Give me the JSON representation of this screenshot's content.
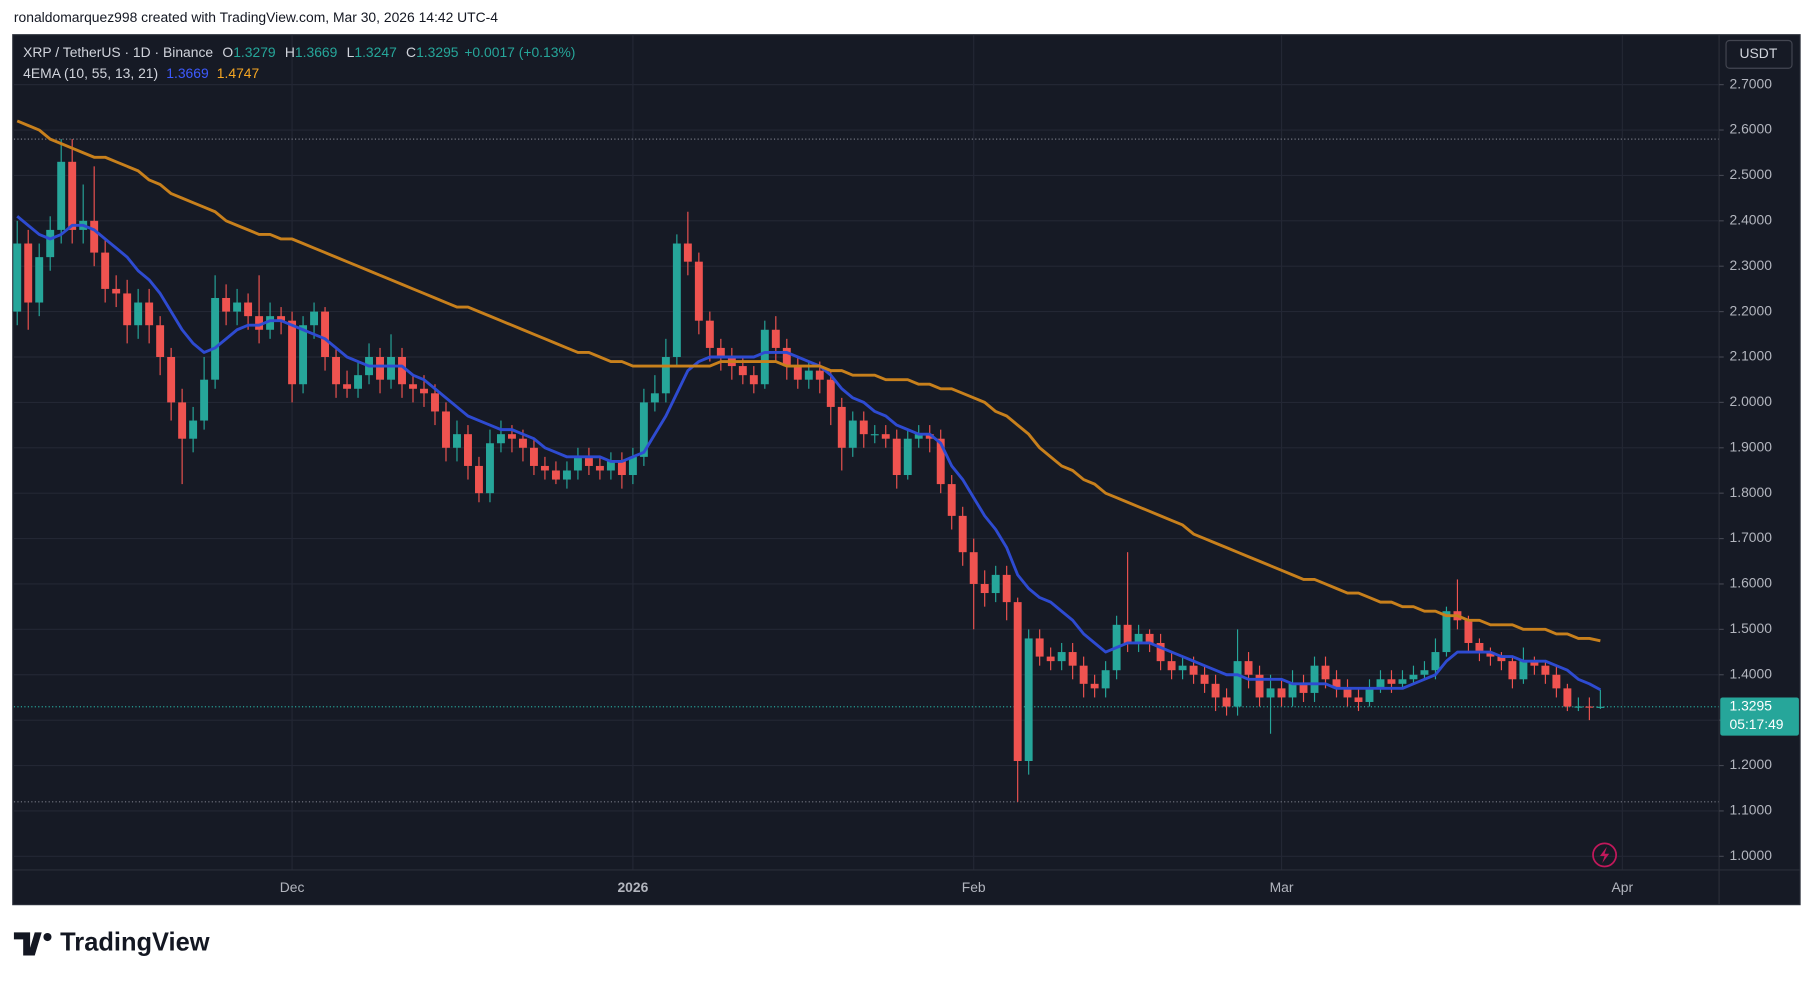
{
  "attribution": "ronaldomarquez998 created with TradingView.com, Mar 30, 2026 14:42 UTC-4",
  "watermark": "TradingView",
  "chart_data": {
    "type": "candlestick",
    "title": "XRP / TetherUS · 1D · Binance",
    "legend_labels": {
      "open": "O",
      "high": "H",
      "low": "L",
      "close": "C"
    },
    "change": "+0.0017 (+0.13%)",
    "indicator": "4EMA (10, 55, 13, 21)",
    "currency": "USDT",
    "countdown": "05:17:49",
    "up_color": "#26a69a",
    "down_color": "#ef5350",
    "grid": true,
    "xlim": [
      -0.3,
      154.8
    ],
    "xticks": [
      {
        "value": 25,
        "label": "Dec"
      },
      {
        "value": 56,
        "label": "2026"
      },
      {
        "value": 87,
        "label": "Feb"
      },
      {
        "value": 115,
        "label": "Mar"
      },
      {
        "value": 146,
        "label": "Apr"
      }
    ],
    "ylim": [
      0.97,
      2.81
    ],
    "yticks": [
      {
        "value": 1,
        "label": "1.0000"
      },
      {
        "value": 1.1,
        "label": "1.1000"
      },
      {
        "value": 1.2,
        "label": "1.2000"
      },
      {
        "value": 1.3,
        "label": "1.3000"
      },
      {
        "value": 1.4,
        "label": "1.4000"
      },
      {
        "value": 1.5,
        "label": "1.5000"
      },
      {
        "value": 1.6,
        "label": "1.6000"
      },
      {
        "value": 1.7,
        "label": "1.7000"
      },
      {
        "value": 1.8,
        "label": "1.8000"
      },
      {
        "value": 1.9,
        "label": "1.9000"
      },
      {
        "value": 2,
        "label": "2.0000"
      },
      {
        "value": 2.1,
        "label": "2.1000"
      },
      {
        "value": 2.2,
        "label": "2.2000"
      },
      {
        "value": 2.3,
        "label": "2.3000"
      },
      {
        "value": 2.4,
        "label": "2.4000"
      },
      {
        "value": 2.5,
        "label": "2.5000"
      },
      {
        "value": 2.6,
        "label": "2.6000"
      },
      {
        "value": 2.7,
        "label": "2.7000"
      }
    ],
    "range_high": 2.58,
    "range_low": 1.12,
    "open": [
      2.2,
      2.35,
      2.22,
      2.32,
      2.38,
      2.53,
      2.38,
      2.4,
      2.33,
      2.25,
      2.24,
      2.17,
      2.22,
      2.17,
      2.1,
      2.0,
      1.92,
      1.96,
      2.05,
      2.23,
      2.2,
      2.22,
      2.19,
      2.16,
      2.19,
      2.18,
      2.04,
      2.17,
      2.2,
      2.1,
      2.04,
      2.03,
      2.06,
      2.1,
      2.05,
      2.1,
      2.04,
      2.03,
      2.02,
      1.98,
      1.9,
      1.93,
      1.86,
      1.8,
      1.91,
      1.93,
      1.92,
      1.9,
      1.86,
      1.85,
      1.83,
      1.85,
      1.88,
      1.86,
      1.85,
      1.87,
      1.84,
      1.88,
      2.0,
      2.02,
      2.1,
      2.35,
      2.31,
      2.18,
      2.12,
      2.1,
      2.08,
      2.06,
      2.04,
      2.16,
      2.12,
      2.08,
      2.05,
      2.07,
      2.05,
      1.99,
      1.9,
      1.96,
      1.93,
      1.93,
      1.92,
      1.84,
      1.92,
      1.93,
      1.92,
      1.82,
      1.75,
      1.67,
      1.6,
      1.58,
      1.62,
      1.56,
      1.21,
      1.48,
      1.44,
      1.43,
      1.45,
      1.42,
      1.38,
      1.37,
      1.41,
      1.51,
      1.47,
      1.49,
      1.47,
      1.43,
      1.41,
      1.42,
      1.4,
      1.38,
      1.35,
      1.33,
      1.43,
      1.4,
      1.35,
      1.37,
      1.35,
      1.38,
      1.36,
      1.42,
      1.39,
      1.37,
      1.35,
      1.34,
      1.37,
      1.39,
      1.38,
      1.39,
      1.4,
      1.41,
      1.45,
      1.54,
      1.52,
      1.47,
      1.45,
      1.44,
      1.43,
      1.39,
      1.43,
      1.42,
      1.4,
      1.37,
      1.33,
      1.33,
      1.3279
    ],
    "high": [
      2.4,
      2.38,
      2.35,
      2.41,
      2.58,
      2.58,
      2.48,
      2.52,
      2.36,
      2.28,
      2.27,
      2.25,
      2.25,
      2.19,
      2.12,
      2.03,
      1.99,
      2.1,
      2.28,
      2.26,
      2.25,
      2.24,
      2.28,
      2.22,
      2.21,
      2.2,
      2.19,
      2.22,
      2.21,
      2.12,
      2.07,
      2.09,
      2.13,
      2.12,
      2.15,
      2.12,
      2.06,
      2.06,
      2.04,
      2.0,
      1.96,
      1.95,
      1.88,
      1.94,
      1.96,
      1.95,
      1.94,
      1.92,
      1.88,
      1.87,
      1.87,
      1.9,
      1.9,
      1.88,
      1.89,
      1.89,
      1.9,
      2.03,
      2.06,
      2.14,
      2.37,
      2.42,
      2.33,
      2.2,
      2.14,
      2.12,
      2.1,
      2.08,
      2.18,
      2.19,
      2.14,
      2.1,
      2.09,
      2.09,
      2.07,
      2.01,
      1.98,
      1.98,
      1.95,
      1.95,
      1.94,
      1.94,
      1.95,
      1.95,
      1.94,
      1.84,
      1.77,
      1.7,
      1.63,
      1.64,
      1.64,
      1.57,
      1.5,
      1.5,
      1.46,
      1.47,
      1.47,
      1.44,
      1.4,
      1.43,
      1.53,
      1.67,
      1.51,
      1.5,
      1.49,
      1.45,
      1.44,
      1.44,
      1.42,
      1.4,
      1.37,
      1.5,
      1.45,
      1.42,
      1.4,
      1.39,
      1.41,
      1.4,
      1.44,
      1.44,
      1.41,
      1.39,
      1.37,
      1.39,
      1.41,
      1.41,
      1.41,
      1.42,
      1.43,
      1.48,
      1.55,
      1.61,
      1.53,
      1.48,
      1.46,
      1.45,
      1.44,
      1.46,
      1.44,
      1.43,
      1.42,
      1.38,
      1.35,
      1.35,
      1.3669
    ],
    "low": [
      2.17,
      2.16,
      2.19,
      2.29,
      2.35,
      2.35,
      2.35,
      2.3,
      2.22,
      2.21,
      2.13,
      2.14,
      2.13,
      2.06,
      1.96,
      1.82,
      1.89,
      1.94,
      2.03,
      2.17,
      2.17,
      2.16,
      2.13,
      2.14,
      2.15,
      2.0,
      2.02,
      2.14,
      2.07,
      2.01,
      2.01,
      2.01,
      2.04,
      2.02,
      2.03,
      2.01,
      2.0,
      1.99,
      1.95,
      1.87,
      1.87,
      1.83,
      1.78,
      1.78,
      1.89,
      1.89,
      1.87,
      1.84,
      1.83,
      1.82,
      1.81,
      1.83,
      1.84,
      1.83,
      1.83,
      1.81,
      1.82,
      1.86,
      1.98,
      2.0,
      2.08,
      2.28,
      2.15,
      2.09,
      2.07,
      2.05,
      2.04,
      2.02,
      2.03,
      2.09,
      2.05,
      2.03,
      2.03,
      2.02,
      1.95,
      1.85,
      1.88,
      1.9,
      1.91,
      1.9,
      1.81,
      1.83,
      1.9,
      1.89,
      1.8,
      1.72,
      1.64,
      1.5,
      1.55,
      1.56,
      1.52,
      1.12,
      1.18,
      1.42,
      1.41,
      1.41,
      1.39,
      1.35,
      1.35,
      1.35,
      1.39,
      1.45,
      1.45,
      1.45,
      1.41,
      1.39,
      1.39,
      1.38,
      1.36,
      1.32,
      1.31,
      1.31,
      1.37,
      1.33,
      1.27,
      1.33,
      1.33,
      1.34,
      1.34,
      1.37,
      1.35,
      1.33,
      1.32,
      1.33,
      1.36,
      1.36,
      1.37,
      1.38,
      1.39,
      1.39,
      1.44,
      1.5,
      1.45,
      1.43,
      1.42,
      1.41,
      1.37,
      1.38,
      1.4,
      1.38,
      1.35,
      1.32,
      1.32,
      1.3,
      1.3247
    ],
    "close": [
      2.35,
      2.22,
      2.32,
      2.38,
      2.53,
      2.38,
      2.4,
      2.33,
      2.25,
      2.24,
      2.17,
      2.22,
      2.17,
      2.1,
      2.0,
      1.92,
      1.96,
      2.05,
      2.23,
      2.2,
      2.22,
      2.19,
      2.16,
      2.19,
      2.18,
      2.04,
      2.17,
      2.2,
      2.1,
      2.04,
      2.03,
      2.06,
      2.1,
      2.05,
      2.1,
      2.04,
      2.03,
      2.02,
      1.98,
      1.9,
      1.93,
      1.86,
      1.8,
      1.91,
      1.93,
      1.92,
      1.9,
      1.86,
      1.85,
      1.83,
      1.85,
      1.88,
      1.86,
      1.85,
      1.87,
      1.84,
      1.88,
      2.0,
      2.02,
      2.1,
      2.35,
      2.31,
      2.18,
      2.12,
      2.1,
      2.08,
      2.06,
      2.04,
      2.16,
      2.12,
      2.08,
      2.05,
      2.07,
      2.05,
      1.99,
      1.9,
      1.96,
      1.93,
      1.93,
      1.92,
      1.84,
      1.92,
      1.93,
      1.92,
      1.82,
      1.75,
      1.67,
      1.6,
      1.58,
      1.62,
      1.56,
      1.21,
      1.48,
      1.44,
      1.43,
      1.45,
      1.42,
      1.38,
      1.37,
      1.41,
      1.51,
      1.47,
      1.49,
      1.47,
      1.43,
      1.41,
      1.42,
      1.4,
      1.38,
      1.35,
      1.33,
      1.43,
      1.4,
      1.35,
      1.37,
      1.35,
      1.38,
      1.36,
      1.42,
      1.39,
      1.37,
      1.35,
      1.34,
      1.37,
      1.39,
      1.38,
      1.39,
      1.4,
      1.41,
      1.45,
      1.54,
      1.52,
      1.47,
      1.45,
      1.44,
      1.43,
      1.39,
      1.43,
      1.42,
      1.4,
      1.37,
      1.33,
      1.33,
      1.3278,
      1.3295
    ],
    "series": [
      {
        "color": "#2e4bd1",
        "values": [
          2.41,
          2.39,
          2.37,
          2.36,
          2.37,
          2.39,
          2.39,
          2.38,
          2.36,
          2.34,
          2.32,
          2.29,
          2.27,
          2.24,
          2.2,
          2.16,
          2.13,
          2.11,
          2.12,
          2.14,
          2.16,
          2.17,
          2.17,
          2.18,
          2.18,
          2.17,
          2.16,
          2.15,
          2.14,
          2.12,
          2.1,
          2.09,
          2.08,
          2.08,
          2.08,
          2.08,
          2.06,
          2.05,
          2.03,
          2.01,
          1.99,
          1.97,
          1.96,
          1.95,
          1.94,
          1.94,
          1.93,
          1.92,
          1.9,
          1.89,
          1.88,
          1.88,
          1.88,
          1.88,
          1.87,
          1.87,
          1.88,
          1.89,
          1.93,
          1.97,
          2.02,
          2.07,
          2.09,
          2.1,
          2.1,
          2.1,
          2.1,
          2.1,
          2.11,
          2.11,
          2.11,
          2.1,
          2.09,
          2.08,
          2.06,
          2.03,
          2.01,
          2.0,
          1.98,
          1.97,
          1.95,
          1.94,
          1.93,
          1.93,
          1.91,
          1.86,
          1.83,
          1.79,
          1.75,
          1.72,
          1.68,
          1.62,
          1.59,
          1.57,
          1.56,
          1.54,
          1.52,
          1.49,
          1.47,
          1.45,
          1.46,
          1.47,
          1.47,
          1.47,
          1.46,
          1.45,
          1.44,
          1.43,
          1.42,
          1.41,
          1.4,
          1.4,
          1.39,
          1.39,
          1.39,
          1.39,
          1.38,
          1.38,
          1.38,
          1.38,
          1.37,
          1.37,
          1.37,
          1.37,
          1.37,
          1.37,
          1.37,
          1.38,
          1.39,
          1.4,
          1.43,
          1.45,
          1.45,
          1.45,
          1.45,
          1.44,
          1.44,
          1.43,
          1.43,
          1.43,
          1.42,
          1.41,
          1.39,
          1.38,
          1.3669
        ]
      },
      {
        "color": "#c8801c",
        "values": [
          2.62,
          2.61,
          2.6,
          2.58,
          2.57,
          2.56,
          2.55,
          2.54,
          2.54,
          2.53,
          2.52,
          2.51,
          2.49,
          2.48,
          2.46,
          2.45,
          2.44,
          2.43,
          2.42,
          2.4,
          2.39,
          2.38,
          2.37,
          2.37,
          2.36,
          2.36,
          2.35,
          2.34,
          2.33,
          2.32,
          2.31,
          2.3,
          2.29,
          2.28,
          2.27,
          2.26,
          2.25,
          2.24,
          2.23,
          2.22,
          2.21,
          2.21,
          2.2,
          2.19,
          2.18,
          2.17,
          2.16,
          2.15,
          2.14,
          2.13,
          2.12,
          2.11,
          2.11,
          2.1,
          2.09,
          2.09,
          2.08,
          2.08,
          2.08,
          2.08,
          2.08,
          2.08,
          2.08,
          2.08,
          2.09,
          2.09,
          2.09,
          2.09,
          2.09,
          2.09,
          2.08,
          2.08,
          2.08,
          2.08,
          2.07,
          2.07,
          2.06,
          2.06,
          2.06,
          2.05,
          2.05,
          2.05,
          2.04,
          2.04,
          2.03,
          2.03,
          2.02,
          2.01,
          2.0,
          1.98,
          1.97,
          1.95,
          1.93,
          1.9,
          1.88,
          1.86,
          1.85,
          1.83,
          1.82,
          1.8,
          1.79,
          1.78,
          1.77,
          1.76,
          1.75,
          1.74,
          1.73,
          1.71,
          1.7,
          1.69,
          1.68,
          1.67,
          1.66,
          1.65,
          1.64,
          1.63,
          1.62,
          1.61,
          1.61,
          1.6,
          1.59,
          1.58,
          1.58,
          1.57,
          1.56,
          1.56,
          1.55,
          1.55,
          1.54,
          1.54,
          1.53,
          1.53,
          1.52,
          1.52,
          1.51,
          1.51,
          1.51,
          1.5,
          1.5,
          1.5,
          1.49,
          1.49,
          1.48,
          1.48,
          1.4747
        ]
      }
    ]
  }
}
